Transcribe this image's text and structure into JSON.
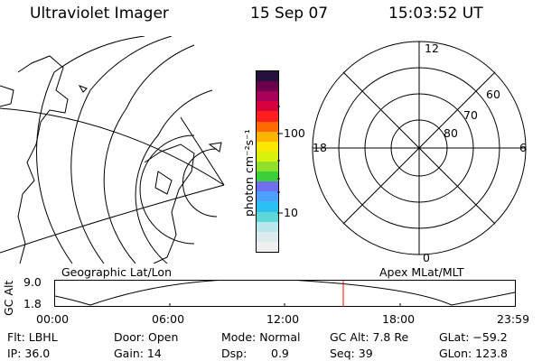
{
  "header": {
    "instrument": "Ultraviolet Imager",
    "date": "15 Sep 07",
    "time": "15:03:52 UT"
  },
  "left_map": {
    "label": "Geographic Lat/Lon"
  },
  "color_scale": {
    "unit_label": "photon cm⁻²s⁻¹",
    "ticks": [
      "100",
      "10"
    ],
    "colors": [
      "#efefef",
      "#dcebed",
      "#b8e8ec",
      "#5fd7d8",
      "#2bc0f0",
      "#4da0ff",
      "#6f6ff0",
      "#3ccf3c",
      "#8fe02a",
      "#d8f20e",
      "#f8e800",
      "#ffb400",
      "#ff6a00",
      "#ff1e1e",
      "#d8003c",
      "#a80058",
      "#6a004a",
      "#24103a"
    ]
  },
  "polar_plot": {
    "label": "Apex MLat/MLT",
    "mlt_labels": {
      "top": "12",
      "right": "6",
      "bottom": "0",
      "left": "18"
    },
    "mlat_labels": [
      "60",
      "70",
      "80"
    ]
  },
  "orbit_plot": {
    "y_axis_label": "GC Alt",
    "y_ticks": [
      "9.0",
      "1.8"
    ],
    "x_ticks": [
      "00:00",
      "06:00",
      "12:00",
      "18:00",
      "23:59"
    ],
    "marker_color": "#ff0000"
  },
  "status": {
    "flt": "Flt: LBHL",
    "door": "Door: Open",
    "mode": "Mode: Normal",
    "gc_alt": "GC Alt: 7.8 Re",
    "glat": "GLat: −59.2",
    "ip": "IP: 36.0",
    "gain": "Gain: 14",
    "dsp_label": "Dsp:",
    "dsp_value": "0.9",
    "seq": "Seq: 39",
    "glon": "GLon: 123.8"
  }
}
